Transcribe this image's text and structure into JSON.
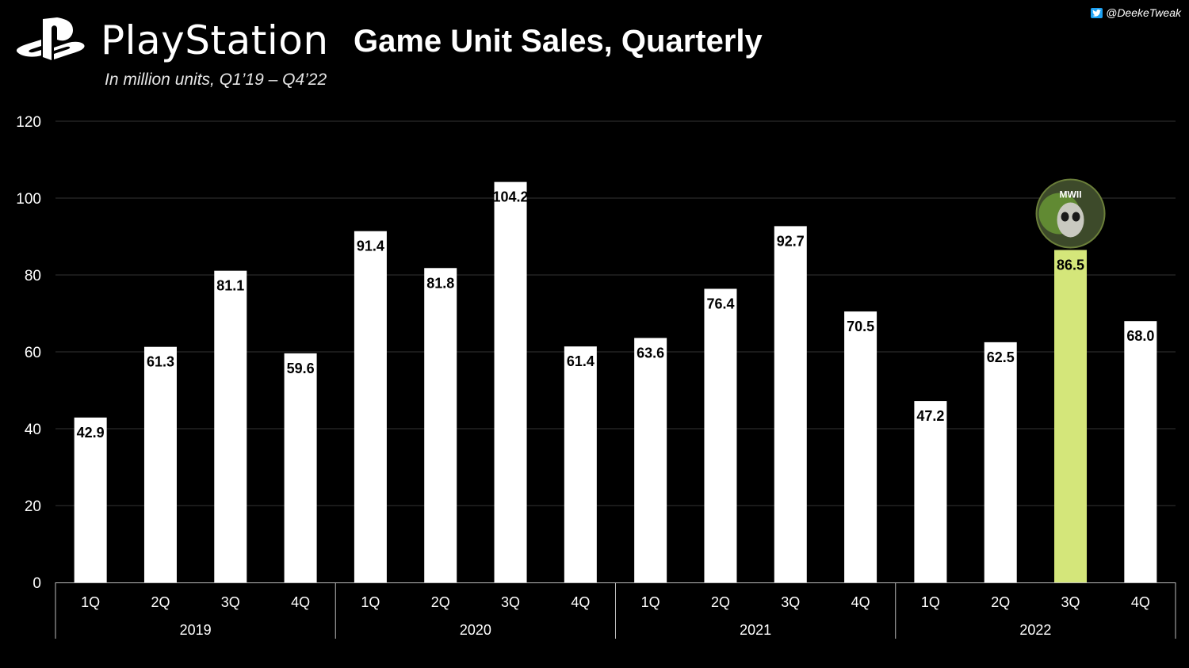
{
  "header": {
    "brand": "PlayStation",
    "title": "Game Unit Sales, Quarterly",
    "subtitle": "In million units, Q1’19 – Q4’22",
    "credit": "@DeekeTweak",
    "credit_icon": "twitter-icon",
    "logo_icon": "playstation-logo-icon"
  },
  "colors": {
    "background": "#000000",
    "bar": "#ffffff",
    "highlight_bar": "#d4e67a",
    "gridline": "#333333",
    "axis": "#bbbbbb"
  },
  "chart_data": {
    "type": "bar",
    "categories": [
      "1Q",
      "2Q",
      "3Q",
      "4Q",
      "1Q",
      "2Q",
      "3Q",
      "4Q",
      "1Q",
      "2Q",
      "3Q",
      "4Q",
      "1Q",
      "2Q",
      "3Q",
      "4Q"
    ],
    "groups": [
      {
        "label": "2019",
        "count": 4
      },
      {
        "label": "2020",
        "count": 4
      },
      {
        "label": "2021",
        "count": 4
      },
      {
        "label": "2022",
        "count": 4
      }
    ],
    "values": [
      42.9,
      61.3,
      81.1,
      59.6,
      91.4,
      81.8,
      104.2,
      61.4,
      63.6,
      76.4,
      92.7,
      70.5,
      47.2,
      62.5,
      86.5,
      68.0
    ],
    "value_labels": [
      "42.9",
      "61.3",
      "81.1",
      "59.6",
      "91.4",
      "81.8",
      "104.2",
      "61.4",
      "63.6",
      "76.4",
      "92.7",
      "70.5",
      "47.2",
      "62.5",
      "86.5",
      "68.0"
    ],
    "highlight_index": 14,
    "highlight_icon": "call-of-duty-mw2-icon",
    "highlight_icon_text": "MWII",
    "y_ticks": [
      "0",
      "20",
      "40",
      "60",
      "80",
      "100",
      "120"
    ],
    "ylim": [
      0,
      120
    ],
    "grid": true,
    "title": "Game Unit Sales, Quarterly",
    "xlabel": "",
    "ylabel": ""
  }
}
